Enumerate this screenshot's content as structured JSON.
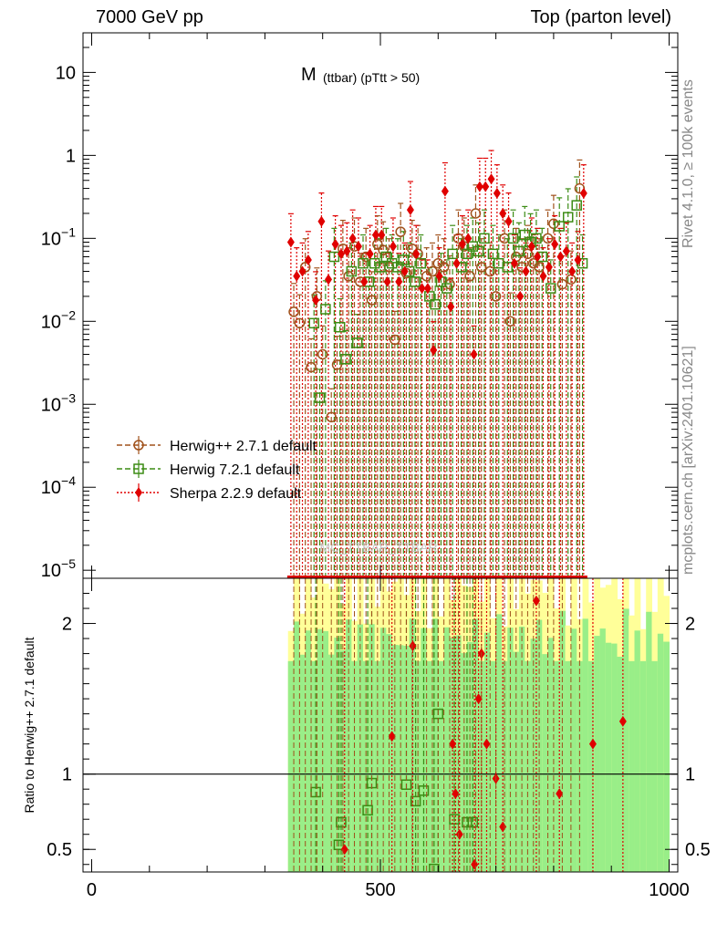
{
  "header": {
    "left": "7000 GeV pp",
    "right": "Top (parton level)"
  },
  "side_labels": {
    "rivet": "Rivet 4.1.0, ≥ 100k events",
    "mcplots": "mcplots.cern.ch [arXiv:2401.10621]"
  },
  "colors": {
    "herwig_old": "#a0521c",
    "herwig_new": "#3c8c14",
    "sherpa": "#e00000",
    "band_green": "#99ee88",
    "band_yellow": "#ffff99"
  },
  "chart_data": {
    "type": "scatter",
    "title_main": "M",
    "title_sub": "(ttbar) (pTtt > 50)",
    "watermark": "MC_TTBAR_TTBAR",
    "main_panel": {
      "yscale": "log",
      "ylim": [
        8e-06,
        30
      ],
      "xlim": [
        -15,
        1015
      ],
      "y_ticks": [
        {
          "value": 10,
          "label": "10"
        },
        {
          "value": 1,
          "label": "1"
        },
        {
          "value": 0.1,
          "base": "10",
          "exp": "−1"
        },
        {
          "value": 0.01,
          "base": "10",
          "exp": "−2"
        },
        {
          "value": 0.001,
          "base": "10",
          "exp": "−3"
        },
        {
          "value": 0.0001,
          "base": "10",
          "exp": "−4"
        },
        {
          "value": 1e-05,
          "base": "10",
          "exp": "−5"
        }
      ]
    },
    "ratio_panel": {
      "ylabel": "Ratio to Herwig++ 2.7.1 default",
      "ylim": [
        0.35,
        2.3
      ],
      "y_ticks": [
        {
          "value": 0.5,
          "label": "0.5"
        },
        {
          "value": 1,
          "label": "1"
        },
        {
          "value": 2,
          "label": "2"
        }
      ],
      "reference": 1
    },
    "x_ticks": [
      {
        "value": 0,
        "label": "0"
      },
      {
        "value": 500,
        "label": "500"
      },
      {
        "value": 1000,
        "label": "1000"
      }
    ],
    "legend_position": "middle-left",
    "series": [
      {
        "name": "Herwig++ 2.7.1 default",
        "marker": "open-circle",
        "line": "dashed",
        "points": [
          [
            350,
            0.013
          ],
          [
            360,
            0.0095
          ],
          [
            370,
            0.045
          ],
          [
            380,
            0.0028
          ],
          [
            390,
            0.02
          ],
          [
            400,
            0.004
          ],
          [
            415,
            0.0007
          ],
          [
            425,
            0.003
          ],
          [
            435,
            0.075
          ],
          [
            445,
            0.035
          ],
          [
            455,
            0.08
          ],
          [
            465,
            0.03
          ],
          [
            475,
            0.06
          ],
          [
            485,
            0.018
          ],
          [
            495,
            0.085
          ],
          [
            505,
            0.072
          ],
          [
            515,
            0.045
          ],
          [
            525,
            0.006
          ],
          [
            535,
            0.12
          ],
          [
            545,
            0.038
          ],
          [
            555,
            0.075
          ],
          [
            565,
            0.065
          ],
          [
            580,
            0.035
          ],
          [
            590,
            0.04
          ],
          [
            600,
            0.05
          ],
          [
            610,
            0.045
          ],
          [
            620,
            0.028
          ],
          [
            635,
            0.1
          ],
          [
            645,
            0.08
          ],
          [
            655,
            0.035
          ],
          [
            665,
            0.2
          ],
          [
            675,
            0.045
          ],
          [
            690,
            0.04
          ],
          [
            700,
            0.02
          ],
          [
            715,
            0.1
          ],
          [
            725,
            0.01
          ],
          [
            735,
            0.06
          ],
          [
            745,
            0.045
          ],
          [
            755,
            0.065
          ],
          [
            765,
            0.05
          ],
          [
            775,
            0.045
          ],
          [
            790,
            0.1
          ],
          [
            800,
            0.15
          ],
          [
            815,
            0.028
          ],
          [
            830,
            0.032
          ],
          [
            845,
            0.4
          ]
        ]
      },
      {
        "name": "Herwig 7.2.1 default",
        "marker": "open-square",
        "line": "dashed",
        "points": [
          [
            385,
            0.0095
          ],
          [
            395,
            0.0012
          ],
          [
            405,
            0.014
          ],
          [
            420,
            0.06
          ],
          [
            430,
            0.0085
          ],
          [
            440,
            0.0035
          ],
          [
            450,
            0.04
          ],
          [
            460,
            0.0055
          ],
          [
            470,
            0.05
          ],
          [
            480,
            0.03
          ],
          [
            490,
            0.05
          ],
          [
            500,
            0.045
          ],
          [
            510,
            0.06
          ],
          [
            520,
            0.05
          ],
          [
            530,
            0.045
          ],
          [
            540,
            0.055
          ],
          [
            550,
            0.04
          ],
          [
            560,
            0.03
          ],
          [
            570,
            0.05
          ],
          [
            585,
            0.02
          ],
          [
            595,
            0.016
          ],
          [
            605,
            0.03
          ],
          [
            615,
            0.025
          ],
          [
            625,
            0.065
          ],
          [
            640,
            0.045
          ],
          [
            650,
            0.065
          ],
          [
            660,
            0.08
          ],
          [
            670,
            0.07
          ],
          [
            680,
            0.1
          ],
          [
            695,
            0.065
          ],
          [
            705,
            0.05
          ],
          [
            720,
            0.045
          ],
          [
            730,
            0.1
          ],
          [
            740,
            0.07
          ],
          [
            750,
            0.11
          ],
          [
            760,
            0.09
          ],
          [
            770,
            0.1
          ],
          [
            780,
            0.06
          ],
          [
            795,
            0.025
          ],
          [
            810,
            0.14
          ],
          [
            825,
            0.18
          ],
          [
            840,
            0.25
          ],
          [
            850,
            0.05
          ]
        ]
      },
      {
        "name": "Sherpa 2.2.9 default",
        "marker": "filled-diamond",
        "line": "dotted",
        "points": [
          [
            345,
            0.09
          ],
          [
            355,
            0.035
          ],
          [
            365,
            0.04
          ],
          [
            375,
            0.055
          ],
          [
            388,
            0.018
          ],
          [
            398,
            0.16
          ],
          [
            410,
            0.032
          ],
          [
            422,
            0.085
          ],
          [
            432,
            0.065
          ],
          [
            442,
            0.07
          ],
          [
            452,
            0.1
          ],
          [
            462,
            0.08
          ],
          [
            472,
            0.03
          ],
          [
            482,
            0.065
          ],
          [
            492,
            0.11
          ],
          [
            502,
            0.11
          ],
          [
            512,
            0.03
          ],
          [
            522,
            0.08
          ],
          [
            532,
            0.03
          ],
          [
            542,
            0.04
          ],
          [
            552,
            0.22
          ],
          [
            562,
            0.065
          ],
          [
            572,
            0.025
          ],
          [
            582,
            0.025
          ],
          [
            592,
            0.0045
          ],
          [
            602,
            0.035
          ],
          [
            612,
            0.37
          ],
          [
            622,
            0.015
          ],
          [
            632,
            0.05
          ],
          [
            642,
            0.085
          ],
          [
            652,
            0.1
          ],
          [
            662,
            0.004
          ],
          [
            672,
            0.42
          ],
          [
            682,
            0.42
          ],
          [
            692,
            0.52
          ],
          [
            702,
            0.35
          ],
          [
            712,
            0.2
          ],
          [
            722,
            0.16
          ],
          [
            732,
            0.05
          ],
          [
            742,
            0.02
          ],
          [
            752,
            0.04
          ],
          [
            762,
            0.08
          ],
          [
            772,
            0.06
          ],
          [
            782,
            0.035
          ],
          [
            792,
            0.045
          ],
          [
            802,
            0.085
          ],
          [
            812,
            0.06
          ],
          [
            822,
            0.07
          ],
          [
            832,
            0.04
          ],
          [
            842,
            0.055
          ],
          [
            852,
            0.35
          ]
        ]
      }
    ],
    "ratio_points": {
      "Herwig 7.2.1 default": [
        [
          388,
          0.88
        ],
        [
          428,
          0.53
        ],
        [
          432,
          0.68
        ],
        [
          478,
          0.76
        ],
        [
          485,
          0.94
        ],
        [
          545,
          0.93
        ],
        [
          561,
          0.82
        ],
        [
          575,
          0.89
        ],
        [
          593,
          0.37
        ],
        [
          600,
          1.4
        ],
        [
          628,
          0.7
        ],
        [
          650,
          0.68
        ],
        [
          660,
          0.68
        ]
      ],
      "Sherpa 2.2.9 default": [
        [
          438,
          0.5
        ],
        [
          520,
          1.25
        ],
        [
          556,
          1.85
        ],
        [
          625,
          1.2
        ],
        [
          630,
          0.87
        ],
        [
          637,
          0.6
        ],
        [
          663,
          0.4
        ],
        [
          670,
          1.5
        ],
        [
          675,
          1.8
        ],
        [
          684,
          1.2
        ],
        [
          700,
          0.97
        ],
        [
          712,
          0.65
        ],
        [
          770,
          2.15
        ],
        [
          810,
          0.87
        ],
        [
          868,
          1.2
        ],
        [
          920,
          1.35
        ]
      ]
    }
  }
}
